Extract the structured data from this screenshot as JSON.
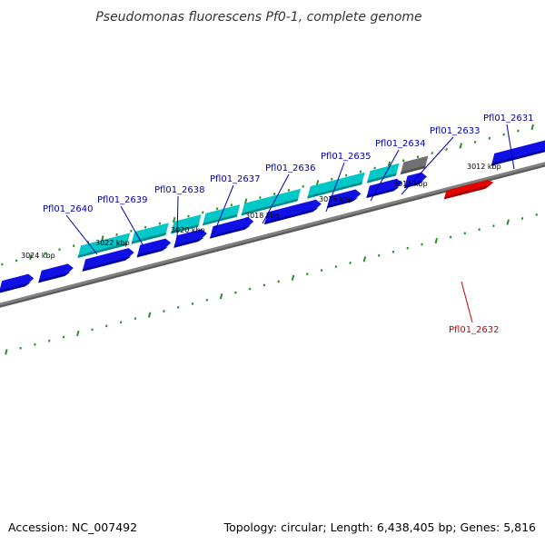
{
  "title": "Pseudomonas fluorescens Pf0-1, complete genome",
  "footer": {
    "accession": "Accession: NC_007492",
    "summary": "Topology: circular; Length: 6,438,405 bp; Genes: 5,816"
  },
  "colors": {
    "backbone": "#808080",
    "tick": "#2d8a2d",
    "gene_forward": "#1010e6",
    "gene_forward_dark": "#0000a0",
    "gene_selected": "#00c8c8",
    "gene_selected_dark": "#008c8c",
    "gene_highlight": "#e60000",
    "gene_other": "#707070",
    "label_blue": "#0000aa",
    "label_red": "#cc0000"
  },
  "kbp_labels": [
    "3024 kbp",
    "3022 kbp",
    "3020 kbp",
    "3018 kbp",
    "3016 kbp",
    "3014 kbp",
    "3012 kbp"
  ],
  "gene_labels": [
    {
      "name": "Pfl01_2640",
      "color": "blue"
    },
    {
      "name": "Pfl01_2639",
      "color": "blue"
    },
    {
      "name": "Pfl01_2638",
      "color": "blue"
    },
    {
      "name": "Pfl01_2637",
      "color": "blue"
    },
    {
      "name": "Pfl01_2636",
      "color": "blue"
    },
    {
      "name": "Pfl01_2635",
      "color": "blue"
    },
    {
      "name": "Pfl01_2634",
      "color": "blue"
    },
    {
      "name": "Pfl01_2633",
      "color": "blue"
    },
    {
      "name": "Pfl01_2631",
      "color": "blue"
    },
    {
      "name": "Pfl01_2632",
      "color": "red"
    }
  ]
}
